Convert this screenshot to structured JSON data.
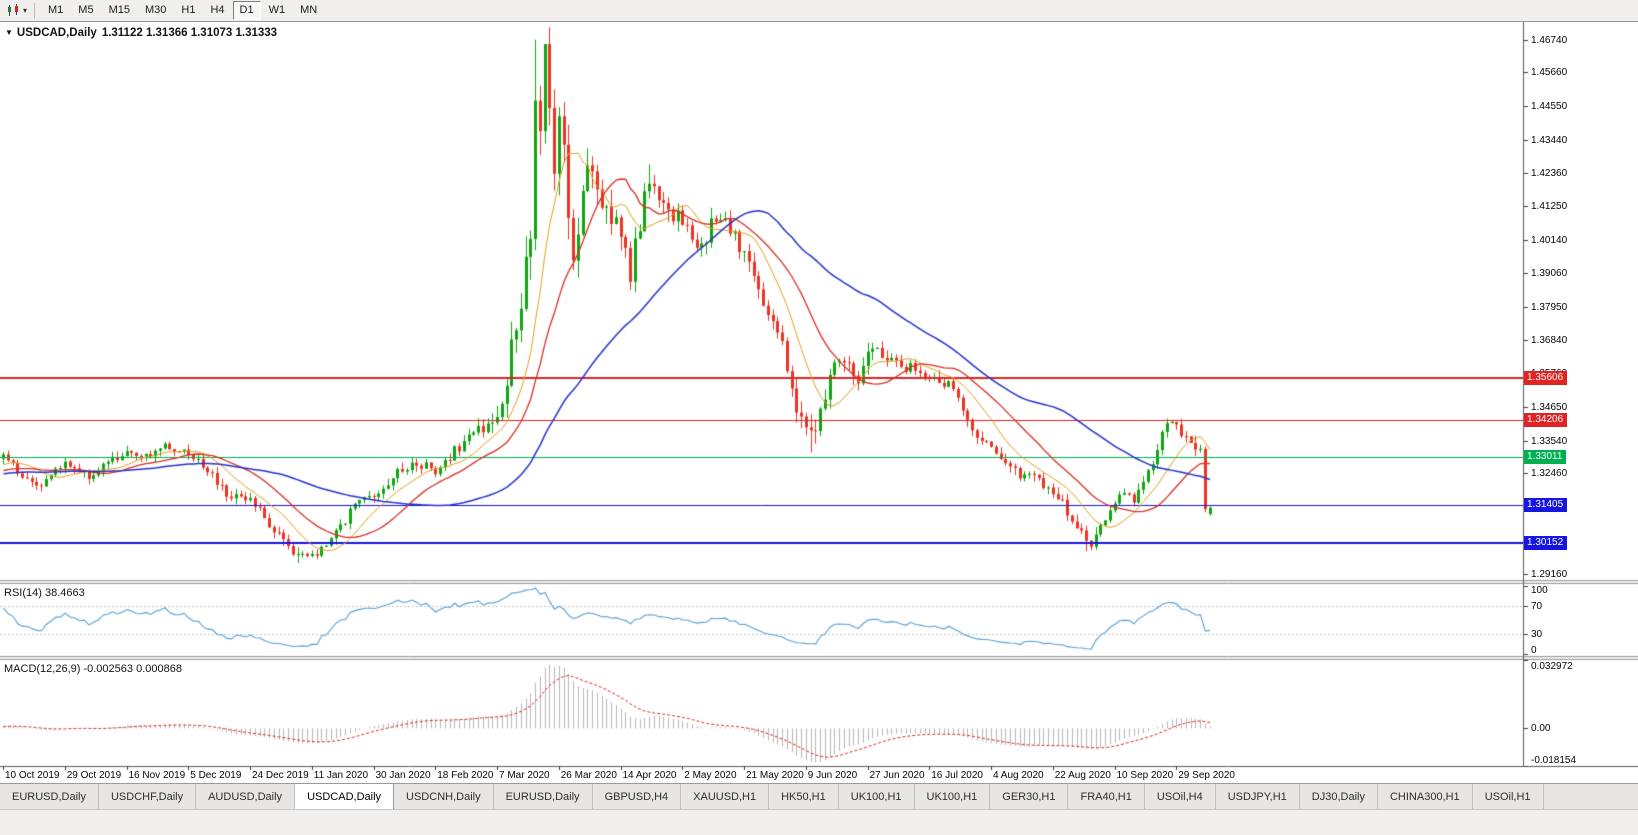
{
  "toolbar": {
    "timeframes": [
      {
        "label": "M1",
        "active": false
      },
      {
        "label": "M5",
        "active": false
      },
      {
        "label": "M15",
        "active": false
      },
      {
        "label": "M30",
        "active": false
      },
      {
        "label": "H1",
        "active": false
      },
      {
        "label": "H4",
        "active": false
      },
      {
        "label": "D1",
        "active": true
      },
      {
        "label": "W1",
        "active": false
      },
      {
        "label": "MN",
        "active": false
      }
    ]
  },
  "chart": {
    "symbol_period": "USDCAD,Daily",
    "ohlc_text": "1.31122 1.31366 1.31073 1.31333"
  },
  "chart_data": {
    "type": "candlestick",
    "symbol": "USDCAD",
    "timeframe": "Daily",
    "current_bar": {
      "open": 1.31122,
      "high": 1.31366,
      "low": 1.31073,
      "close": 1.31333
    },
    "bars_total": 255,
    "ylim": [
      1.2895,
      1.4732
    ],
    "y_ticks": [
      "1.46740",
      "1.45660",
      "1.44550",
      "1.43440",
      "1.42360",
      "1.41250",
      "1.40140",
      "1.39060",
      "1.37950",
      "1.36840",
      "1.35760",
      "1.34650",
      "1.33540",
      "1.32460",
      "1.31350",
      "1.30240",
      "1.29160"
    ],
    "x_labels": [
      "10 Oct 2019",
      "29 Oct 2019",
      "16 Nov 2019",
      "5 Dec 2019",
      "24 Dec 2019",
      "11 Jan 2020",
      "30 Jan 2020",
      "18 Feb 2020",
      "7 Mar 2020",
      "26 Mar 2020",
      "14 Apr 2020",
      "2 May 2020",
      "21 May 2020",
      "9 Jun 2020",
      "27 Jun 2020",
      "16 Jul 2020",
      "4 Aug 2020",
      "22 Aug 2020",
      "10 Sep 2020",
      "29 Sep 2020"
    ],
    "x_label_step": 13,
    "hlines": [
      {
        "price": 1.35606,
        "label": "1.35606",
        "color_key": "hline_red",
        "width": 2
      },
      {
        "price": 1.34206,
        "label": "1.34206",
        "color_key": "hline_red",
        "width": 1
      },
      {
        "price": 1.33011,
        "label": "1.33011",
        "color_key": "hline_green",
        "width": 1
      },
      {
        "price": 1.31405,
        "label": "1.31405",
        "color_key": "hline_blue",
        "width": 1
      },
      {
        "price": 1.30152,
        "label": "1.30152",
        "color_key": "hline_blue",
        "width": 2
      }
    ],
    "moving_averages": [
      {
        "period": 10,
        "color_key": "ma_fast",
        "width": 1
      },
      {
        "period": 20,
        "color_key": "ma_mid",
        "width": 1.3
      },
      {
        "period": 50,
        "color_key": "ma_slow",
        "width": 1.5
      }
    ],
    "close_anchors": [
      [
        -60,
        1.324
      ],
      [
        -45,
        1.32
      ],
      [
        -30,
        1.327
      ],
      [
        -15,
        1.323
      ],
      [
        0,
        1.3295
      ],
      [
        4,
        1.3245
      ],
      [
        8,
        1.3205
      ],
      [
        13,
        1.328
      ],
      [
        18,
        1.3235
      ],
      [
        22,
        1.329
      ],
      [
        26,
        1.331
      ],
      [
        30,
        1.33
      ],
      [
        34,
        1.333
      ],
      [
        39,
        1.3305
      ],
      [
        43,
        1.3255
      ],
      [
        47,
        1.3175
      ],
      [
        52,
        1.316
      ],
      [
        56,
        1.3075
      ],
      [
        60,
        1.2995
      ],
      [
        63,
        1.2965
      ],
      [
        66,
        1.2985
      ],
      [
        70,
        1.3055
      ],
      [
        74,
        1.3135
      ],
      [
        78,
        1.318
      ],
      [
        82,
        1.3235
      ],
      [
        86,
        1.3285
      ],
      [
        91,
        1.3255
      ],
      [
        95,
        1.332
      ],
      [
        100,
        1.3385
      ],
      [
        104,
        1.3425
      ],
      [
        106,
        1.357
      ],
      [
        108,
        1.3715
      ],
      [
        110,
        1.3925
      ],
      [
        111,
        1.406
      ],
      [
        112,
        1.448
      ],
      [
        113,
        1.432
      ],
      [
        114,
        1.46
      ],
      [
        115,
        1.45
      ],
      [
        116,
        1.423
      ],
      [
        117,
        1.442
      ],
      [
        118,
        1.429
      ],
      [
        119,
        1.407
      ],
      [
        120,
        1.3985
      ],
      [
        122,
        1.416
      ],
      [
        124,
        1.427
      ],
      [
        126,
        1.415
      ],
      [
        128,
        1.4085
      ],
      [
        130,
        1.405
      ],
      [
        132,
        1.3895
      ],
      [
        134,
        1.4075
      ],
      [
        136,
        1.421
      ],
      [
        138,
        1.413
      ],
      [
        140,
        1.41
      ],
      [
        143,
        1.4085
      ],
      [
        145,
        1.402
      ],
      [
        147,
        1.3985
      ],
      [
        149,
        1.4065
      ],
      [
        151,
        1.4105
      ],
      [
        153,
        1.4045
      ],
      [
        156,
        1.3975
      ],
      [
        158,
        1.39
      ],
      [
        160,
        1.3795
      ],
      [
        162,
        1.376
      ],
      [
        164,
        1.368
      ],
      [
        166,
        1.3495
      ],
      [
        168,
        1.3425
      ],
      [
        170,
        1.336
      ],
      [
        172,
        1.344
      ],
      [
        174,
        1.3555
      ],
      [
        176,
        1.362
      ],
      [
        178,
        1.3585
      ],
      [
        180,
        1.355
      ],
      [
        182,
        1.3645
      ],
      [
        184,
        1.3675
      ],
      [
        186,
        1.3605
      ],
      [
        188,
        1.362
      ],
      [
        190,
        1.358
      ],
      [
        192,
        1.36
      ],
      [
        195,
        1.357
      ],
      [
        197,
        1.353
      ],
      [
        199,
        1.3565
      ],
      [
        201,
        1.35
      ],
      [
        203,
        1.3415
      ],
      [
        205,
        1.338
      ],
      [
        208,
        1.3345
      ],
      [
        210,
        1.33
      ],
      [
        212,
        1.327
      ],
      [
        214,
        1.3235
      ],
      [
        216,
        1.326
      ],
      [
        218,
        1.322
      ],
      [
        221,
        1.318
      ],
      [
        223,
        1.315
      ],
      [
        225,
        1.309
      ],
      [
        227,
        1.3045
      ],
      [
        229,
        1.301
      ],
      [
        231,
        1.306
      ],
      [
        234,
        1.315
      ],
      [
        236,
        1.319
      ],
      [
        238,
        1.316
      ],
      [
        240,
        1.321
      ],
      [
        242,
        1.328
      ],
      [
        244,
        1.3385
      ],
      [
        246,
        1.341
      ],
      [
        248,
        1.3375
      ],
      [
        250,
        1.333
      ],
      [
        252,
        1.3315
      ],
      [
        253,
        1.3115
      ],
      [
        254,
        1.31333
      ]
    ],
    "volatility_anchors": [
      [
        -60,
        0.0032
      ],
      [
        0,
        0.0034
      ],
      [
        50,
        0.0038
      ],
      [
        60,
        0.0042
      ],
      [
        90,
        0.004
      ],
      [
        100,
        0.005
      ],
      [
        104,
        0.0085
      ],
      [
        110,
        0.015
      ],
      [
        116,
        0.016
      ],
      [
        122,
        0.012
      ],
      [
        130,
        0.0095
      ],
      [
        140,
        0.0075
      ],
      [
        150,
        0.0065
      ],
      [
        160,
        0.007
      ],
      [
        170,
        0.008
      ],
      [
        180,
        0.0055
      ],
      [
        195,
        0.0045
      ],
      [
        210,
        0.0042
      ],
      [
        225,
        0.0048
      ],
      [
        235,
        0.0042
      ],
      [
        245,
        0.004
      ],
      [
        252,
        0.0045
      ],
      [
        254,
        0.0028
      ]
    ],
    "wick_overrides": {
      "62": {
        "low": 1.2951
      },
      "112": {
        "high": 1.4674
      },
      "114": {
        "high": 1.466
      },
      "132": {
        "low": 1.385
      },
      "136": {
        "high": 1.4263
      },
      "170": {
        "low": 1.3315
      },
      "228": {
        "low": 1.299
      }
    },
    "indicators": {
      "rsi": {
        "label": "RSI(14) 38.4663",
        "period": 14,
        "last_value": 38.4663,
        "levels": [
          70,
          30
        ],
        "axis": [
          {
            "value": 100,
            "label": "100"
          },
          {
            "value": 70,
            "label": "70"
          },
          {
            "value": 30,
            "label": "30"
          },
          {
            "value": 0,
            "label": "0"
          }
        ]
      },
      "macd": {
        "label": "MACD(12,26,9) -0.002563 0.000868",
        "fast": 12,
        "slow": 26,
        "signal": 9,
        "value": -0.002563,
        "signal_value": 0.000868,
        "range": [
          -0.018154,
          0.032972
        ],
        "axis": [
          {
            "value": 0.032972,
            "label": "0.032972"
          },
          {
            "value": 0,
            "label": "0.00"
          },
          {
            "value": -0.018154,
            "label": "-0.018154"
          }
        ]
      }
    }
  },
  "tabs": [
    {
      "label": "EURUSD,Daily",
      "active": false
    },
    {
      "label": "USDCHF,Daily",
      "active": false
    },
    {
      "label": "AUDUSD,Daily",
      "active": false
    },
    {
      "label": "USDCAD,Daily",
      "active": true
    },
    {
      "label": "USDCNH,Daily",
      "active": false
    },
    {
      "label": "EURUSD,Daily",
      "active": false
    },
    {
      "label": "GBPUSD,H4",
      "active": false
    },
    {
      "label": "XAUUSD,H1",
      "active": false
    },
    {
      "label": "HK50,H1",
      "active": false
    },
    {
      "label": "UK100,H1",
      "active": false
    },
    {
      "label": "UK100,H1",
      "active": false
    },
    {
      "label": "GER30,H1",
      "active": false
    },
    {
      "label": "FRA40,H1",
      "active": false
    },
    {
      "label": "USOil,H4",
      "active": false
    },
    {
      "label": "USDJPY,H1",
      "active": false
    },
    {
      "label": "DJ30,Daily",
      "active": false
    },
    {
      "label": "CHINA300,H1",
      "active": false
    },
    {
      "label": "USOil,H1",
      "active": false
    }
  ],
  "colors": {
    "up_candle": "#0fa50f",
    "down_candle": "#ea3423",
    "ma_fast": "#e2a01e",
    "ma_mid": "#d93025",
    "ma_slow": "#2733cc",
    "rsi_line": "#58a0d8",
    "macd_histogram": "#b6b6b6",
    "macd_signal": "#d93025",
    "hline_red": "#e02424",
    "hline_green": "#00b050",
    "hline_blue": "#1616e0",
    "toolbar_bg": "#f0efed",
    "panel_bg": "#ffffff",
    "axis_text": "#050505"
  }
}
